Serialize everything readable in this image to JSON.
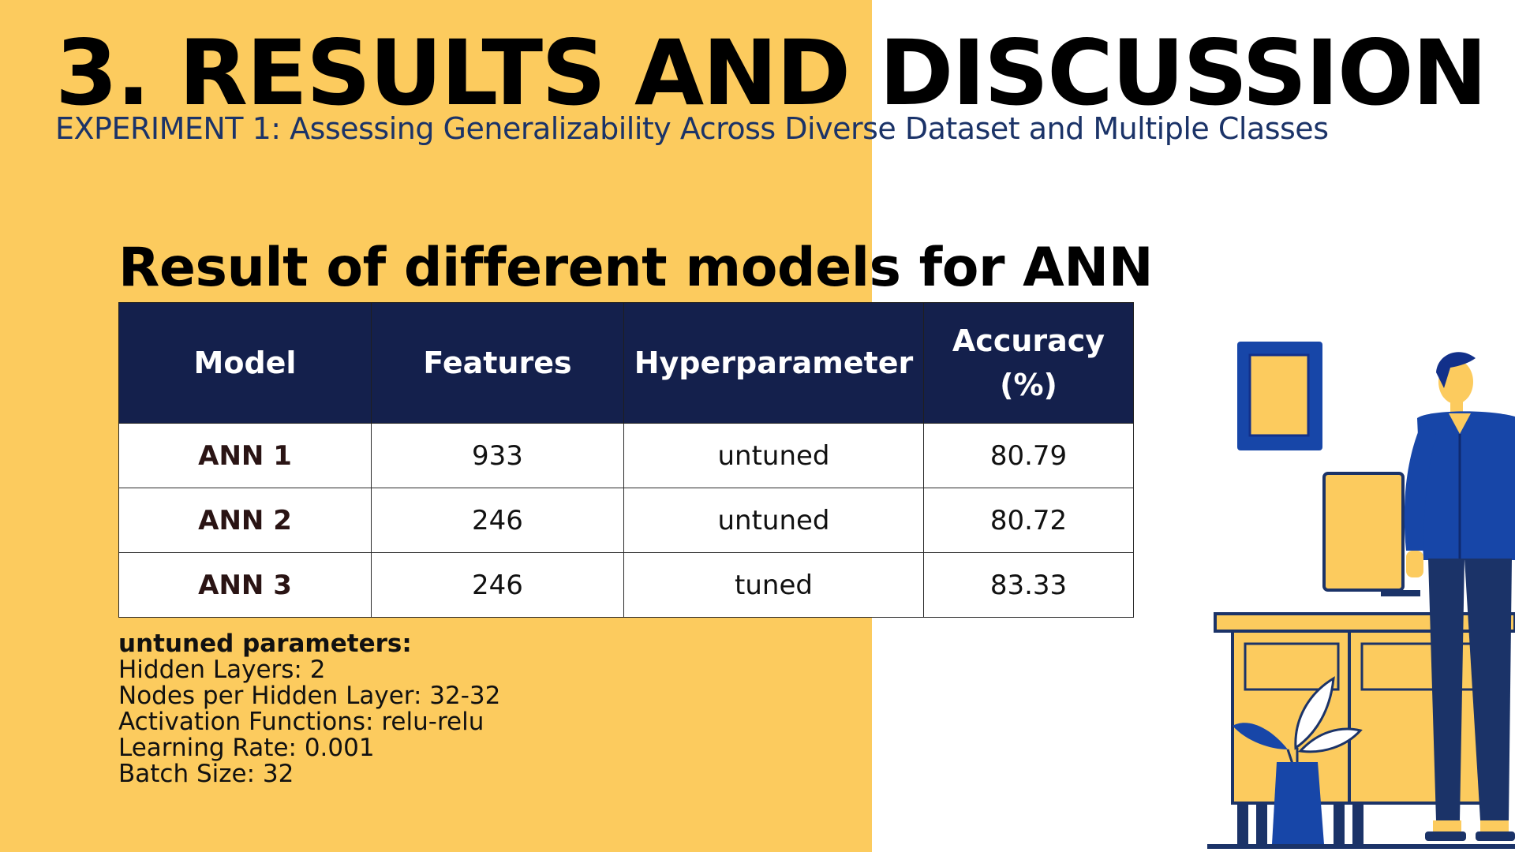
{
  "slide": {
    "title": "3. RESULTS AND DISCUSSION",
    "subtitle": "EXPERIMENT 1: Assessing Generalizability Across Diverse Dataset and Multiple Classes",
    "section_title": "Result of different models for ANN"
  },
  "table": {
    "headers": [
      "Model",
      "Features",
      "Hyperparameter",
      "Accuracy (%)"
    ],
    "rows": [
      {
        "model": "ANN 1",
        "features": "933",
        "hyperparameter": "untuned",
        "accuracy": "80.79"
      },
      {
        "model": "ANN 2",
        "features": "246",
        "hyperparameter": "untuned",
        "accuracy": "80.72"
      },
      {
        "model": "ANN 3",
        "features": "246",
        "hyperparameter": "tuned",
        "accuracy": "83.33"
      }
    ]
  },
  "params": {
    "heading": "untuned parameters:",
    "lines": [
      "Hidden Layers: 2",
      "Nodes per Hidden Layer: 32-32",
      "Activation Functions: relu-relu",
      "Learning Rate: 0.001",
      "Batch Size: 32"
    ]
  },
  "colors": {
    "background_yellow": "#fccb5e",
    "header_navy": "#14204c",
    "subtitle_blue": "#1b3368",
    "illustration_blue": "#1746a8"
  },
  "illustration": {
    "icons": [
      "picture-frame-icon",
      "man-figure-icon",
      "computer-monitor-icon",
      "desk-icon",
      "plant-vase-icon"
    ]
  }
}
